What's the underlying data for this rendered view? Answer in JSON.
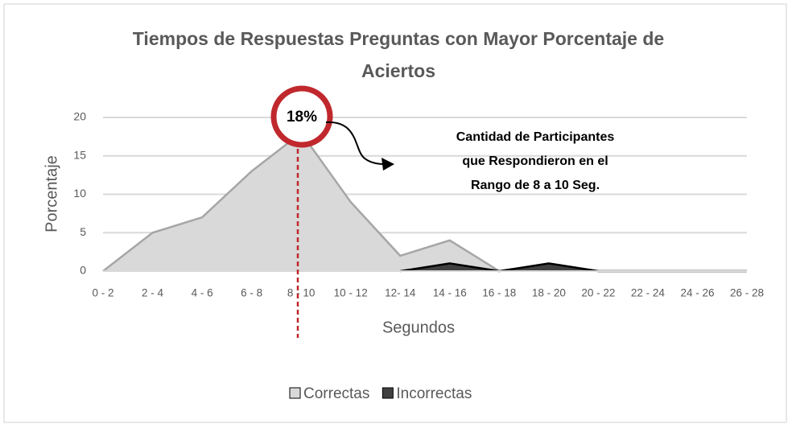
{
  "chart_data": {
    "type": "area",
    "title": [
      "Tiempos de Respuestas Preguntas con Mayor Porcentaje de",
      "Aciertos"
    ],
    "x_label": "Segundos",
    "y_label": "Porcentaje",
    "categories": [
      "0 - 2",
      "2 - 4",
      "4 - 6",
      "6 - 8",
      "8 - 10",
      "10 - 12",
      "12- 14",
      "14 - 16",
      "16 - 18",
      "18 - 20",
      "20 - 22",
      "22 - 24",
      "24 - 26",
      "26 - 28"
    ],
    "series": [
      {
        "name": "Correctas",
        "color": "#d9d9d9",
        "line_color": "#a6a6a6",
        "values": [
          0,
          5,
          7,
          13,
          18,
          9,
          2,
          4,
          0,
          null,
          null,
          null,
          null,
          null
        ]
      },
      {
        "name": "Incorrectas",
        "color": "#404040",
        "line_color": "#000000",
        "values": [
          null,
          null,
          null,
          null,
          null,
          null,
          0,
          1,
          0,
          1,
          0,
          0,
          0,
          0
        ]
      }
    ],
    "ylim": [
      0,
      20
    ],
    "yticks": [
      0,
      5,
      10,
      15,
      20
    ],
    "grid": true,
    "callout": {
      "label": "18%",
      "text": [
        "Cantidad de Participantes",
        "que Respondieron en el",
        "Rango de 8 a 10 Seg."
      ]
    },
    "legend": "bottom"
  }
}
